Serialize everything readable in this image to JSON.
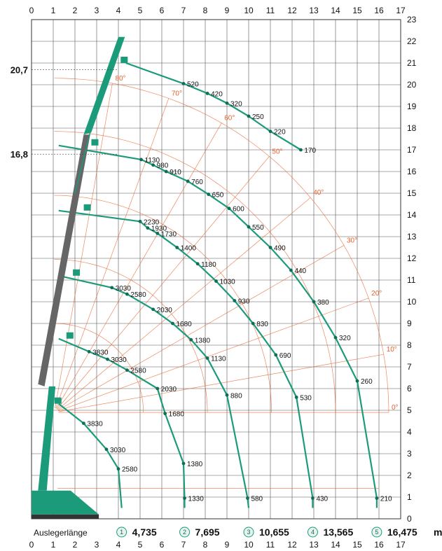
{
  "colors": {
    "grid": "#555555",
    "arc": "#1b9b7a",
    "arc_dark": "#0f6e55",
    "orange": "#e8622c",
    "boom": "#666666",
    "crane": "#1b9b7a"
  },
  "axes": {
    "x_ticks": [
      "0",
      "1",
      "2",
      "3",
      "4",
      "5",
      "6",
      "7",
      "8",
      "9",
      "10",
      "11",
      "12",
      "13",
      "14",
      "15",
      "16",
      "17"
    ],
    "y_ticks": [
      "0",
      "1",
      "2",
      "3",
      "4",
      "5",
      "6",
      "7",
      "8",
      "9",
      "10",
      "11",
      "12",
      "13",
      "14",
      "15",
      "16",
      "17",
      "18",
      "19",
      "20",
      "21",
      "22",
      "23"
    ],
    "xlim": [
      0,
      17
    ],
    "ylim": [
      0,
      23
    ]
  },
  "side_heights": [
    {
      "label": "20,7",
      "value": 20.7
    },
    {
      "label": "16,8",
      "value": 16.8
    }
  ],
  "footer": {
    "label": "Auslegerlänge",
    "unit": "m"
  },
  "angle_labels": [
    {
      "label": "80°",
      "deg": 80
    },
    {
      "label": "70°",
      "deg": 70
    },
    {
      "label": "60°",
      "deg": 60
    },
    {
      "label": "50°",
      "deg": 50
    },
    {
      "label": "40°",
      "deg": 40
    },
    {
      "label": "30°",
      "deg": 30
    },
    {
      "label": "20°",
      "deg": 20
    },
    {
      "label": "10°",
      "deg": 10
    },
    {
      "label": "0°",
      "deg": 0
    }
  ],
  "chart_data": {
    "type": "load-chart",
    "booms": [
      {
        "num": "1",
        "length_label": "4,735",
        "end_x": 4.15,
        "arc_top_y": 5.3,
        "points": [
          {
            "x": 2.4,
            "y": 4.4,
            "label": "3830"
          },
          {
            "x": 3.45,
            "y": 3.2,
            "label": "3030"
          },
          {
            "x": 4.0,
            "y": 2.3,
            "label": "2580"
          }
        ]
      },
      {
        "num": "2",
        "length_label": "7,695",
        "end_x": 7.05,
        "arc_top_y": 8.3,
        "points": [
          {
            "x": 2.65,
            "y": 7.7,
            "label": "3830"
          },
          {
            "x": 3.5,
            "y": 7.35,
            "label": "3030"
          },
          {
            "x": 4.4,
            "y": 6.85,
            "label": "2580"
          },
          {
            "x": 5.8,
            "y": 6.0,
            "label": "2030"
          },
          {
            "x": 6.15,
            "y": 4.85,
            "label": "1680"
          },
          {
            "x": 7.0,
            "y": 2.55,
            "label": "1380"
          },
          {
            "x": 7.05,
            "y": 0.95,
            "label": "1330"
          }
        ]
      },
      {
        "num": "3",
        "length_label": "10,655",
        "end_x": 10.0,
        "arc_top_y": 11.2,
        "points": [
          {
            "x": 3.7,
            "y": 10.65,
            "label": "3030"
          },
          {
            "x": 4.4,
            "y": 10.35,
            "label": "2580"
          },
          {
            "x": 5.6,
            "y": 9.65,
            "label": "2030"
          },
          {
            "x": 6.5,
            "y": 9.0,
            "label": "1680"
          },
          {
            "x": 7.35,
            "y": 8.25,
            "label": "1380"
          },
          {
            "x": 8.1,
            "y": 7.4,
            "label": "1130"
          },
          {
            "x": 9.0,
            "y": 5.7,
            "label": "880"
          },
          {
            "x": 9.95,
            "y": 0.95,
            "label": "580"
          }
        ]
      },
      {
        "num": "4",
        "length_label": "13,565",
        "end_x": 12.95,
        "arc_top_y": 14.2,
        "points": [
          {
            "x": 5.0,
            "y": 13.7,
            "label": "2230"
          },
          {
            "x": 5.35,
            "y": 13.4,
            "label": "1930"
          },
          {
            "x": 5.8,
            "y": 13.15,
            "label": "1730"
          },
          {
            "x": 6.7,
            "y": 12.5,
            "label": "1400"
          },
          {
            "x": 7.65,
            "y": 11.75,
            "label": "1180"
          },
          {
            "x": 8.5,
            "y": 10.95,
            "label": "1030"
          },
          {
            "x": 9.35,
            "y": 10.05,
            "label": "930"
          },
          {
            "x": 10.2,
            "y": 9.0,
            "label": "830"
          },
          {
            "x": 11.25,
            "y": 7.55,
            "label": "690"
          },
          {
            "x": 12.2,
            "y": 5.6,
            "label": "530"
          },
          {
            "x": 12.95,
            "y": 0.95,
            "label": "430"
          }
        ]
      },
      {
        "num": "5",
        "length_label": "16,475",
        "end_x": 15.9,
        "arc_top_y": 17.2,
        "points": [
          {
            "x": 5.05,
            "y": 16.55,
            "label": "1130"
          },
          {
            "x": 5.6,
            "y": 16.3,
            "label": "980"
          },
          {
            "x": 6.2,
            "y": 16.0,
            "label": "910"
          },
          {
            "x": 7.2,
            "y": 15.55,
            "label": "760"
          },
          {
            "x": 8.15,
            "y": 14.95,
            "label": "650"
          },
          {
            "x": 9.1,
            "y": 14.3,
            "label": "600"
          },
          {
            "x": 10.0,
            "y": 13.45,
            "label": "550"
          },
          {
            "x": 11.0,
            "y": 12.5,
            "label": "490"
          },
          {
            "x": 11.95,
            "y": 11.45,
            "label": "440"
          },
          {
            "x": 13.0,
            "y": 10.0,
            "label": "380"
          },
          {
            "x": 14.0,
            "y": 8.35,
            "label": "320"
          },
          {
            "x": 15.0,
            "y": 6.35,
            "label": "260"
          },
          {
            "x": 15.9,
            "y": 0.95,
            "label": "210"
          }
        ]
      },
      {
        "num": "",
        "length_label": "",
        "end_x": 12.4,
        "arc_top_y": 21.0,
        "jib": true,
        "points": [
          {
            "x": 7.0,
            "y": 20.05,
            "label": "520"
          },
          {
            "x": 8.1,
            "y": 19.6,
            "label": "420"
          },
          {
            "x": 9.0,
            "y": 19.15,
            "label": "320"
          },
          {
            "x": 10.0,
            "y": 18.55,
            "label": "250"
          },
          {
            "x": 11.0,
            "y": 17.85,
            "label": "220"
          },
          {
            "x": 12.4,
            "y": 17.0,
            "label": "170"
          }
        ]
      }
    ]
  }
}
